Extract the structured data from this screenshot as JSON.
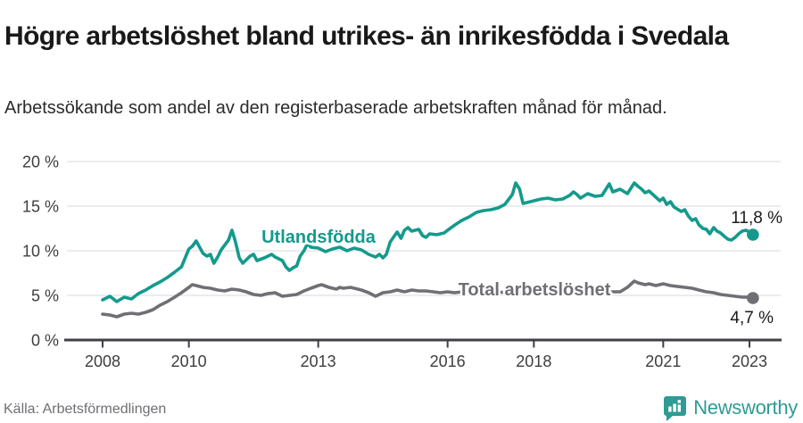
{
  "chart_data": {
    "type": "line",
    "title": "Högre arbetslöshet bland utrikes- än inrikesfödda i Svedala",
    "subtitle": "Arbetssökande som andel av den registerbaserade arbetskraften månad för månad.",
    "xlabel": "",
    "ylabel": "",
    "ylim": [
      0,
      20
    ],
    "xlim": [
      2008,
      2023.2
    ],
    "grid": "horizontal",
    "legend_position": "inline-labels",
    "yticks": [
      {
        "value": 0,
        "label": "0 %"
      },
      {
        "value": 5,
        "label": "5 %"
      },
      {
        "value": 10,
        "label": "10 %"
      },
      {
        "value": 15,
        "label": "15 %"
      },
      {
        "value": 20,
        "label": "20 %"
      }
    ],
    "xticks": [
      {
        "year": 2008,
        "label": "2008"
      },
      {
        "year": 2010,
        "label": "2010"
      },
      {
        "year": 2013,
        "label": "2013"
      },
      {
        "year": 2016,
        "label": "2016"
      },
      {
        "year": 2018,
        "label": "2018"
      },
      {
        "year": 2021,
        "label": "2021"
      },
      {
        "year": 2023,
        "label": "2023"
      }
    ],
    "series": [
      {
        "label": "Total arbetslöshet",
        "color": "#6f6f74",
        "end_label": "4,7 %",
        "last_value": 4.7,
        "points": [
          [
            2008.0,
            2.9
          ],
          [
            2008.17,
            2.8
          ],
          [
            2008.33,
            2.6
          ],
          [
            2008.5,
            2.9
          ],
          [
            2008.67,
            3.0
          ],
          [
            2008.83,
            2.9
          ],
          [
            2009.0,
            3.1
          ],
          [
            2009.17,
            3.4
          ],
          [
            2009.33,
            3.9
          ],
          [
            2009.5,
            4.3
          ],
          [
            2009.67,
            4.8
          ],
          [
            2009.83,
            5.3
          ],
          [
            2010.0,
            5.9
          ],
          [
            2010.08,
            6.2
          ],
          [
            2010.17,
            6.1
          ],
          [
            2010.33,
            5.9
          ],
          [
            2010.5,
            5.8
          ],
          [
            2010.67,
            5.6
          ],
          [
            2010.83,
            5.5
          ],
          [
            2011.0,
            5.7
          ],
          [
            2011.17,
            5.6
          ],
          [
            2011.33,
            5.4
          ],
          [
            2011.5,
            5.1
          ],
          [
            2011.67,
            5.0
          ],
          [
            2011.83,
            5.2
          ],
          [
            2012.0,
            5.3
          ],
          [
            2012.17,
            4.9
          ],
          [
            2012.33,
            5.0
          ],
          [
            2012.5,
            5.1
          ],
          [
            2012.67,
            5.5
          ],
          [
            2012.83,
            5.8
          ],
          [
            2013.0,
            6.1
          ],
          [
            2013.08,
            6.2
          ],
          [
            2013.25,
            5.9
          ],
          [
            2013.42,
            5.7
          ],
          [
            2013.5,
            5.9
          ],
          [
            2013.58,
            5.8
          ],
          [
            2013.75,
            5.9
          ],
          [
            2013.92,
            5.7
          ],
          [
            2014.0,
            5.6
          ],
          [
            2014.17,
            5.3
          ],
          [
            2014.33,
            4.9
          ],
          [
            2014.5,
            5.3
          ],
          [
            2014.67,
            5.4
          ],
          [
            2014.83,
            5.6
          ],
          [
            2015.0,
            5.4
          ],
          [
            2015.17,
            5.6
          ],
          [
            2015.33,
            5.5
          ],
          [
            2015.5,
            5.5
          ],
          [
            2015.67,
            5.4
          ],
          [
            2015.83,
            5.3
          ],
          [
            2016.0,
            5.4
          ],
          [
            2016.17,
            5.3
          ],
          [
            2016.33,
            5.4
          ],
          [
            2016.5,
            5.5
          ],
          [
            2016.67,
            5.4
          ],
          [
            2016.83,
            5.4
          ],
          [
            2017.0,
            5.5
          ],
          [
            2017.17,
            5.4
          ],
          [
            2017.33,
            5.3
          ],
          [
            2017.5,
            5.4
          ],
          [
            2017.67,
            5.3
          ],
          [
            2017.83,
            5.3
          ],
          [
            2018.0,
            5.3
          ],
          [
            2018.17,
            5.2
          ],
          [
            2018.33,
            5.3
          ],
          [
            2018.5,
            5.2
          ],
          [
            2018.67,
            5.2
          ],
          [
            2018.83,
            5.3
          ],
          [
            2019.0,
            5.4
          ],
          [
            2019.17,
            5.3
          ],
          [
            2019.33,
            5.3
          ],
          [
            2019.5,
            5.2
          ],
          [
            2019.67,
            5.3
          ],
          [
            2019.83,
            5.4
          ],
          [
            2020.0,
            5.4
          ],
          [
            2020.17,
            5.9
          ],
          [
            2020.33,
            6.6
          ],
          [
            2020.42,
            6.4
          ],
          [
            2020.5,
            6.3
          ],
          [
            2020.58,
            6.2
          ],
          [
            2020.67,
            6.3
          ],
          [
            2020.83,
            6.1
          ],
          [
            2021.0,
            6.3
          ],
          [
            2021.17,
            6.1
          ],
          [
            2021.33,
            6.0
          ],
          [
            2021.5,
            5.9
          ],
          [
            2021.67,
            5.8
          ],
          [
            2021.83,
            5.6
          ],
          [
            2022.0,
            5.4
          ],
          [
            2022.17,
            5.3
          ],
          [
            2022.33,
            5.1
          ],
          [
            2022.5,
            5.0
          ],
          [
            2022.67,
            4.9
          ],
          [
            2022.83,
            4.8
          ],
          [
            2023.0,
            4.8
          ],
          [
            2023.08,
            4.7
          ]
        ]
      },
      {
        "label": "Utlandsfödda",
        "color": "#149a8c",
        "end_label": "11,8 %",
        "last_value": 11.8,
        "points": [
          [
            2008.0,
            4.5
          ],
          [
            2008.17,
            4.9
          ],
          [
            2008.33,
            4.3
          ],
          [
            2008.5,
            4.8
          ],
          [
            2008.67,
            4.6
          ],
          [
            2008.83,
            5.2
          ],
          [
            2009.0,
            5.6
          ],
          [
            2009.17,
            6.1
          ],
          [
            2009.33,
            6.5
          ],
          [
            2009.5,
            7.0
          ],
          [
            2009.67,
            7.6
          ],
          [
            2009.83,
            8.2
          ],
          [
            2010.0,
            10.2
          ],
          [
            2010.08,
            10.5
          ],
          [
            2010.17,
            11.1
          ],
          [
            2010.33,
            9.7
          ],
          [
            2010.42,
            9.4
          ],
          [
            2010.5,
            9.6
          ],
          [
            2010.58,
            8.6
          ],
          [
            2010.67,
            9.3
          ],
          [
            2010.75,
            10.1
          ],
          [
            2010.92,
            11.2
          ],
          [
            2011.0,
            12.3
          ],
          [
            2011.08,
            11.0
          ],
          [
            2011.17,
            9.2
          ],
          [
            2011.25,
            8.6
          ],
          [
            2011.42,
            9.4
          ],
          [
            2011.5,
            9.6
          ],
          [
            2011.58,
            8.9
          ],
          [
            2011.75,
            9.2
          ],
          [
            2011.92,
            9.6
          ],
          [
            2012.0,
            9.3
          ],
          [
            2012.17,
            8.9
          ],
          [
            2012.25,
            8.2
          ],
          [
            2012.33,
            7.8
          ],
          [
            2012.42,
            8.1
          ],
          [
            2012.5,
            8.3
          ],
          [
            2012.58,
            9.4
          ],
          [
            2012.67,
            10.0
          ],
          [
            2012.75,
            10.8
          ],
          [
            2012.83,
            10.4
          ],
          [
            2013.0,
            10.3
          ],
          [
            2013.17,
            9.9
          ],
          [
            2013.33,
            10.2
          ],
          [
            2013.5,
            10.4
          ],
          [
            2013.67,
            10.0
          ],
          [
            2013.83,
            10.3
          ],
          [
            2014.0,
            10.1
          ],
          [
            2014.17,
            9.6
          ],
          [
            2014.33,
            9.3
          ],
          [
            2014.42,
            9.6
          ],
          [
            2014.5,
            9.2
          ],
          [
            2014.58,
            9.6
          ],
          [
            2014.67,
            11.0
          ],
          [
            2014.83,
            12.1
          ],
          [
            2014.92,
            11.4
          ],
          [
            2015.0,
            12.3
          ],
          [
            2015.08,
            12.6
          ],
          [
            2015.17,
            12.2
          ],
          [
            2015.33,
            12.4
          ],
          [
            2015.42,
            11.7
          ],
          [
            2015.5,
            11.5
          ],
          [
            2015.58,
            11.9
          ],
          [
            2015.75,
            11.8
          ],
          [
            2015.92,
            12.0
          ],
          [
            2016.0,
            12.3
          ],
          [
            2016.17,
            12.9
          ],
          [
            2016.33,
            13.4
          ],
          [
            2016.5,
            13.8
          ],
          [
            2016.67,
            14.3
          ],
          [
            2016.83,
            14.5
          ],
          [
            2017.0,
            14.6
          ],
          [
            2017.17,
            14.8
          ],
          [
            2017.33,
            15.2
          ],
          [
            2017.5,
            16.3
          ],
          [
            2017.58,
            17.6
          ],
          [
            2017.67,
            16.9
          ],
          [
            2017.75,
            15.3
          ],
          [
            2017.92,
            15.5
          ],
          [
            2018.0,
            15.6
          ],
          [
            2018.17,
            15.8
          ],
          [
            2018.33,
            15.9
          ],
          [
            2018.5,
            15.7
          ],
          [
            2018.67,
            15.8
          ],
          [
            2018.83,
            16.2
          ],
          [
            2018.92,
            16.6
          ],
          [
            2019.0,
            16.3
          ],
          [
            2019.08,
            15.9
          ],
          [
            2019.25,
            16.4
          ],
          [
            2019.42,
            16.1
          ],
          [
            2019.58,
            16.2
          ],
          [
            2019.75,
            17.5
          ],
          [
            2019.83,
            16.6
          ],
          [
            2020.0,
            16.9
          ],
          [
            2020.17,
            16.4
          ],
          [
            2020.33,
            17.6
          ],
          [
            2020.42,
            17.2
          ],
          [
            2020.5,
            16.9
          ],
          [
            2020.58,
            16.5
          ],
          [
            2020.67,
            16.7
          ],
          [
            2020.83,
            16.0
          ],
          [
            2020.92,
            15.6
          ],
          [
            2021.0,
            15.9
          ],
          [
            2021.08,
            15.2
          ],
          [
            2021.17,
            15.5
          ],
          [
            2021.25,
            14.9
          ],
          [
            2021.42,
            14.4
          ],
          [
            2021.5,
            14.6
          ],
          [
            2021.58,
            13.9
          ],
          [
            2021.67,
            13.4
          ],
          [
            2021.75,
            13.6
          ],
          [
            2021.83,
            12.9
          ],
          [
            2021.92,
            12.5
          ],
          [
            2022.0,
            12.4
          ],
          [
            2022.08,
            11.9
          ],
          [
            2022.17,
            12.6
          ],
          [
            2022.25,
            12.2
          ],
          [
            2022.33,
            12.0
          ],
          [
            2022.42,
            11.6
          ],
          [
            2022.5,
            11.3
          ],
          [
            2022.58,
            11.2
          ],
          [
            2022.67,
            11.5
          ],
          [
            2022.75,
            11.9
          ],
          [
            2022.83,
            12.2
          ],
          [
            2022.92,
            12.3
          ],
          [
            2023.0,
            12.1
          ],
          [
            2023.08,
            11.8
          ]
        ]
      }
    ]
  },
  "footer": {
    "source": "Källa: Arbetsförmedlingen",
    "brand": "Newsworthy"
  }
}
